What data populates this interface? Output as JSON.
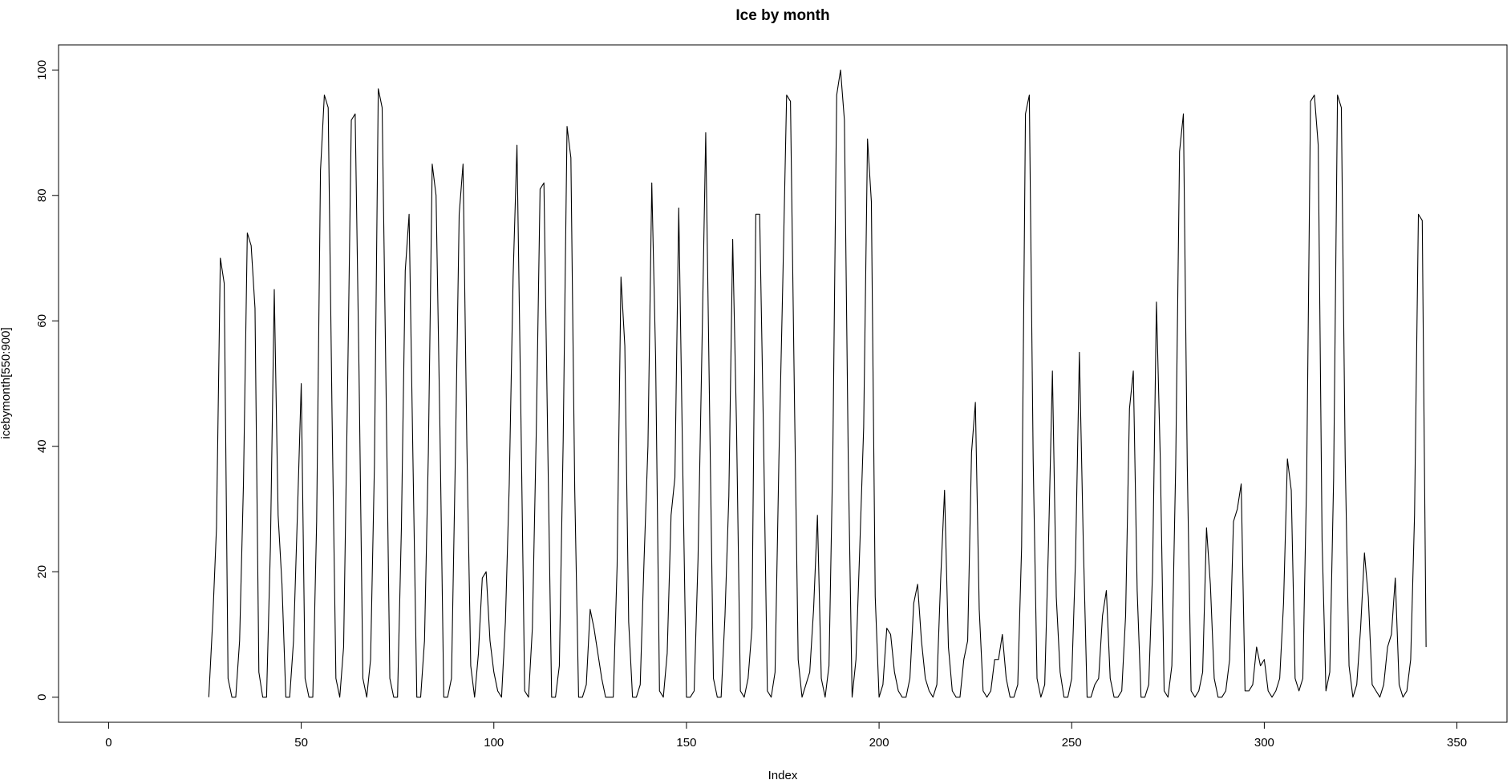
{
  "chart_data": {
    "type": "line",
    "title": "Ice by month",
    "xlabel": "Index",
    "ylabel": "icebymonth[550:900]",
    "xlim": [
      -13,
      363
    ],
    "ylim": [
      -4,
      104
    ],
    "x_ticks": [
      0,
      50,
      100,
      150,
      200,
      250,
      300,
      350
    ],
    "y_ticks": [
      0,
      20,
      40,
      60,
      80,
      100
    ],
    "line_color": "#000000",
    "grid": false,
    "legend": "none",
    "series": [
      {
        "x_start": 26,
        "values": [
          0,
          12,
          27,
          70,
          66,
          3,
          0,
          0,
          9,
          34,
          74,
          72,
          62,
          4,
          0,
          0,
          24,
          65,
          29,
          18,
          0,
          0,
          9,
          29,
          50,
          3,
          0,
          0,
          28,
          84,
          96,
          94,
          45,
          3,
          0,
          8,
          48,
          92,
          93,
          52,
          3,
          0,
          6,
          37,
          97,
          94,
          50,
          3,
          0,
          0,
          27,
          68,
          77,
          38,
          0,
          0,
          9,
          39,
          85,
          80,
          43,
          0,
          0,
          3,
          38,
          77,
          85,
          40,
          5,
          0,
          7,
          19,
          20,
          9,
          4,
          1,
          0,
          12,
          34,
          67,
          88,
          46,
          1,
          0,
          11,
          42,
          81,
          82,
          40,
          0,
          0,
          5,
          41,
          91,
          86,
          33,
          0,
          0,
          2,
          14,
          11,
          7,
          3,
          0,
          0,
          0,
          21,
          67,
          56,
          12,
          0,
          0,
          2,
          22,
          40,
          82,
          54,
          1,
          0,
          7,
          29,
          35,
          78,
          38,
          0,
          0,
          1,
          22,
          55,
          90,
          46,
          3,
          0,
          0,
          13,
          32,
          73,
          43,
          1,
          0,
          3,
          11,
          77,
          77,
          42,
          1,
          0,
          4,
          38,
          66,
          96,
          95,
          49,
          6,
          0,
          2,
          4,
          14,
          29,
          3,
          0,
          5,
          39,
          96,
          100,
          92,
          38,
          0,
          6,
          24,
          43,
          89,
          79,
          16,
          0,
          2,
          11,
          10,
          4,
          1,
          0,
          0,
          3,
          15,
          18,
          9,
          3,
          1,
          0,
          2,
          19,
          33,
          8,
          1,
          0,
          0,
          6,
          9,
          39,
          47,
          14,
          1,
          0,
          1,
          6,
          6,
          10,
          3,
          0,
          0,
          2,
          24,
          93,
          96,
          38,
          3,
          0,
          2,
          25,
          52,
          16,
          4,
          0,
          0,
          3,
          22,
          55,
          25,
          0,
          0,
          2,
          3,
          13,
          17,
          3,
          0,
          0,
          1,
          13,
          46,
          52,
          17,
          0,
          0,
          2,
          20,
          63,
          38,
          1,
          0,
          5,
          37,
          87,
          93,
          37,
          1,
          0,
          1,
          4,
          27,
          18,
          3,
          0,
          0,
          1,
          6,
          28,
          30,
          34,
          1,
          1,
          2,
          8,
          5,
          6,
          1,
          0,
          1,
          3,
          15,
          38,
          33,
          3,
          1,
          3,
          35,
          95,
          96,
          88,
          25,
          1,
          4,
          35,
          96,
          94,
          38,
          5,
          0,
          2,
          11,
          23,
          16,
          2,
          1,
          0,
          2,
          8,
          10,
          19,
          2,
          0,
          1,
          6,
          29,
          77,
          76,
          8
        ]
      }
    ]
  }
}
